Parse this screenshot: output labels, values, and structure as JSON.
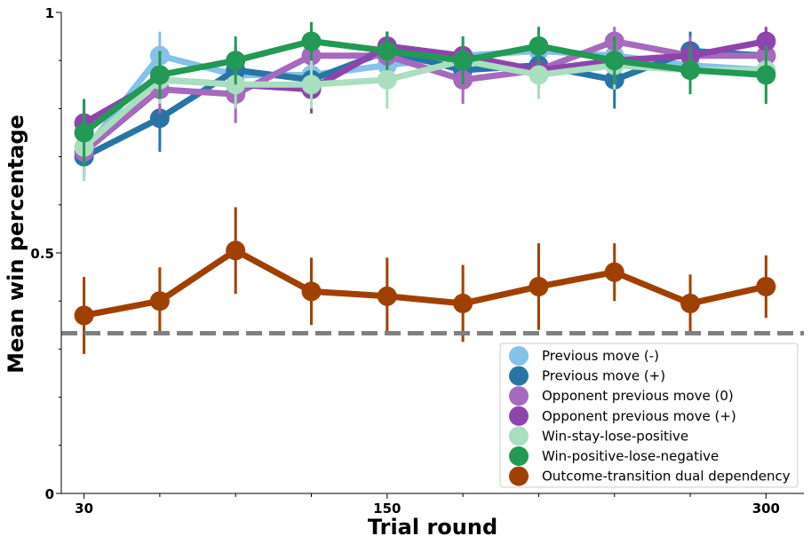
{
  "chart_data": {
    "type": "line",
    "title": "",
    "xlabel": "Trial round",
    "ylabel": "Mean win percentage",
    "x": [
      30,
      60,
      90,
      120,
      150,
      180,
      210,
      240,
      270,
      300
    ],
    "xlim": [
      21,
      315
    ],
    "ylim": [
      0,
      1
    ],
    "x_tick_labels": [
      {
        "value": 30,
        "label": "30"
      },
      {
        "value": 150,
        "label": "150"
      },
      {
        "value": 300,
        "label": "300"
      }
    ],
    "y_tick_labels": [
      {
        "value": 0,
        "label": "0"
      },
      {
        "value": 0.5,
        "label": "0.5"
      },
      {
        "value": 1,
        "label": "1"
      }
    ],
    "chance_line": {
      "y": 0.333,
      "color": "#808080",
      "style": "dashed"
    },
    "legend_position": "bottom-right",
    "grid": false,
    "series": [
      {
        "name": "Previous move (-)",
        "color": "#85c1e9",
        "values": [
          0.71,
          0.91,
          0.87,
          0.87,
          0.89,
          0.91,
          0.92,
          0.91,
          0.89,
          0.88
        ],
        "errors": [
          0.05,
          0.05,
          0.04,
          0.04,
          0.04,
          0.03,
          0.03,
          0.03,
          0.03,
          0.03
        ]
      },
      {
        "name": "Previous move (+)",
        "color": "#2874a6",
        "values": [
          0.7,
          0.78,
          0.88,
          0.86,
          0.92,
          0.88,
          0.89,
          0.86,
          0.92,
          0.91
        ],
        "errors": [
          0.05,
          0.07,
          0.05,
          0.05,
          0.04,
          0.04,
          0.04,
          0.06,
          0.04,
          0.04
        ]
      },
      {
        "name": "Opponent previous move (0)",
        "color": "#a569bd",
        "values": [
          0.71,
          0.84,
          0.83,
          0.91,
          0.91,
          0.86,
          0.88,
          0.94,
          0.91,
          0.91
        ],
        "errors": [
          0.06,
          0.05,
          0.06,
          0.04,
          0.04,
          0.05,
          0.04,
          0.03,
          0.04,
          0.04
        ]
      },
      {
        "name": "Opponent previous move (+)",
        "color": "#8e44ad",
        "values": [
          0.77,
          0.86,
          0.85,
          0.84,
          0.93,
          0.91,
          0.88,
          0.9,
          0.91,
          0.94
        ],
        "errors": [
          0.05,
          0.04,
          0.05,
          0.05,
          0.03,
          0.03,
          0.04,
          0.03,
          0.03,
          0.03
        ]
      },
      {
        "name": "Win-stay-lose-positive",
        "color": "#a9dfbf",
        "values": [
          0.72,
          0.86,
          0.85,
          0.85,
          0.86,
          0.9,
          0.87,
          0.89,
          0.88,
          0.88
        ],
        "errors": [
          0.07,
          0.05,
          0.05,
          0.05,
          0.06,
          0.05,
          0.05,
          0.05,
          0.05,
          0.05
        ]
      },
      {
        "name": "Win-positive-lose-negative",
        "color": "#229954",
        "values": [
          0.75,
          0.87,
          0.9,
          0.94,
          0.92,
          0.9,
          0.93,
          0.9,
          0.88,
          0.87
        ],
        "errors": [
          0.07,
          0.05,
          0.05,
          0.04,
          0.04,
          0.05,
          0.04,
          0.05,
          0.05,
          0.06
        ]
      },
      {
        "name": "Outcome-transition dual dependency",
        "color": "#a04000",
        "values": [
          0.37,
          0.4,
          0.505,
          0.42,
          0.41,
          0.395,
          0.43,
          0.46,
          0.395,
          0.43
        ],
        "errors": [
          0.08,
          0.07,
          0.09,
          0.07,
          0.08,
          0.08,
          0.09,
          0.06,
          0.06,
          0.065
        ]
      }
    ]
  }
}
